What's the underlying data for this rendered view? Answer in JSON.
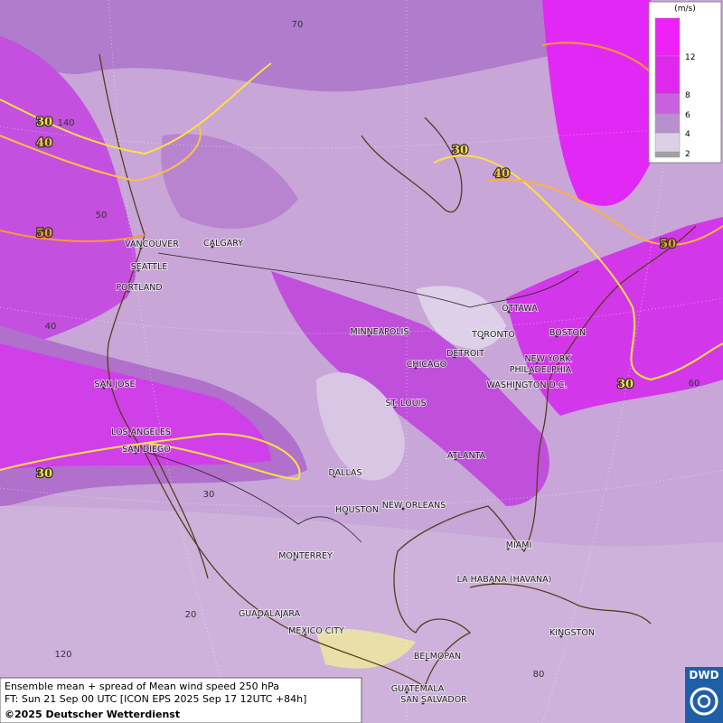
{
  "legend": {
    "unit": "(m/s)",
    "levels": [
      12,
      8,
      6,
      4,
      2
    ]
  },
  "cities": [
    "VANCOUVER",
    "CALGARY",
    "SEATTLE",
    "PORTLAND",
    "SAN JOSE",
    "LOS ANGELES",
    "SAN DIEGO",
    "MINNEAPOLIS",
    "DETROIT",
    "TORONTO",
    "OTTAWA",
    "BOSTON",
    "NEW YORK",
    "PHILADELPHIA",
    "WASHINGTON D.C.",
    "CHICAGO",
    "ST. LOUIS",
    "ATLANTA",
    "DALLAS",
    "HOUSTON",
    "NEW ORLEANS",
    "MIAMI",
    "MONTERREY",
    "LA HABANA (HAVANA)",
    "GUADALAJARA",
    "MEXICO CITY",
    "KINGSTON",
    "BELMOPAN",
    "GUATEMALA",
    "SAN SALVADOR"
  ],
  "contour_labels": [
    30,
    40,
    50,
    30,
    40,
    50,
    30,
    30
  ],
  "graticule_labels": [
    70,
    140,
    50,
    40,
    30,
    20,
    120,
    60,
    80
  ],
  "footer": {
    "line1": "Ensemble mean + spread of Mean wind speed 250 hPa",
    "line2": "FT: Sun 21 Sep 00 UTC [ICON EPS 2025 Sep 17 12UTC +84h]",
    "copyright": "©2025 Deutscher Wetterdienst"
  },
  "logo": "DWD"
}
